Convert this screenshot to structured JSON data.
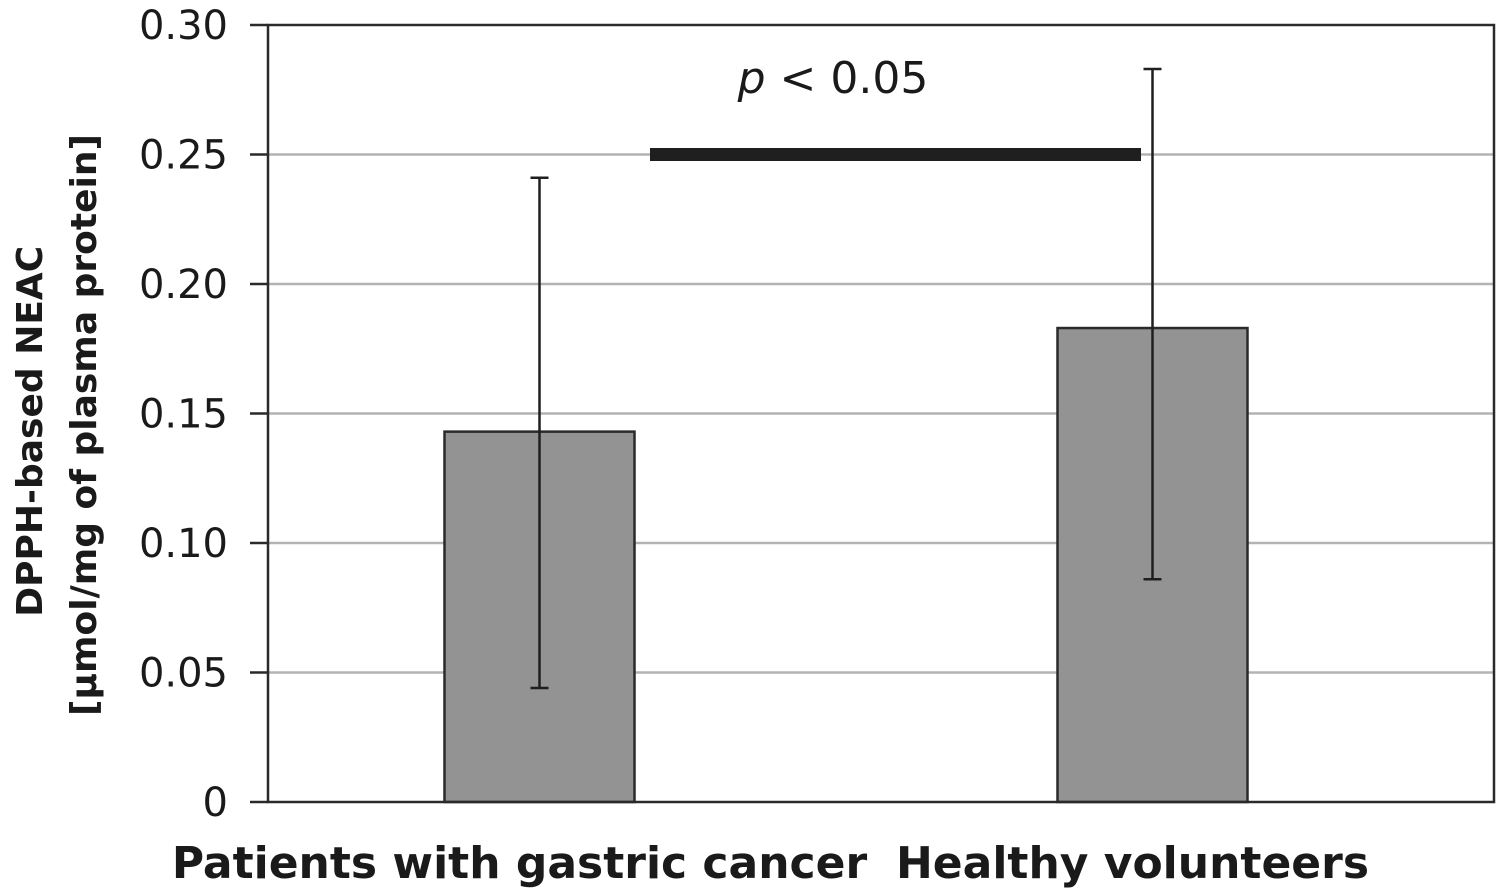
{
  "chart_data": {
    "type": "bar",
    "categories": [
      "Patients with gastric cancer",
      "Healthy volunteers"
    ],
    "values": [
      0.143,
      0.183
    ],
    "error_high": [
      0.241,
      0.283
    ],
    "error_low": [
      0.044,
      0.086
    ],
    "ylabel_line1": "DPPH-based NEAC",
    "ylabel_line2": "[µmol/mg of plasma protein]",
    "ylim": [
      0,
      0.3
    ],
    "yticks": [
      "0",
      "0.05",
      "0.10",
      "0.15",
      "0.20",
      "0.25",
      "0.30"
    ],
    "ytick_values": [
      0,
      0.05,
      0.1,
      0.15,
      0.2,
      0.25,
      0.3
    ],
    "grid": true,
    "bar_color": "#939393",
    "annotation": {
      "p_symbol": "p",
      "text": " < 0.05",
      "bracket_y": 0.25
    }
  }
}
